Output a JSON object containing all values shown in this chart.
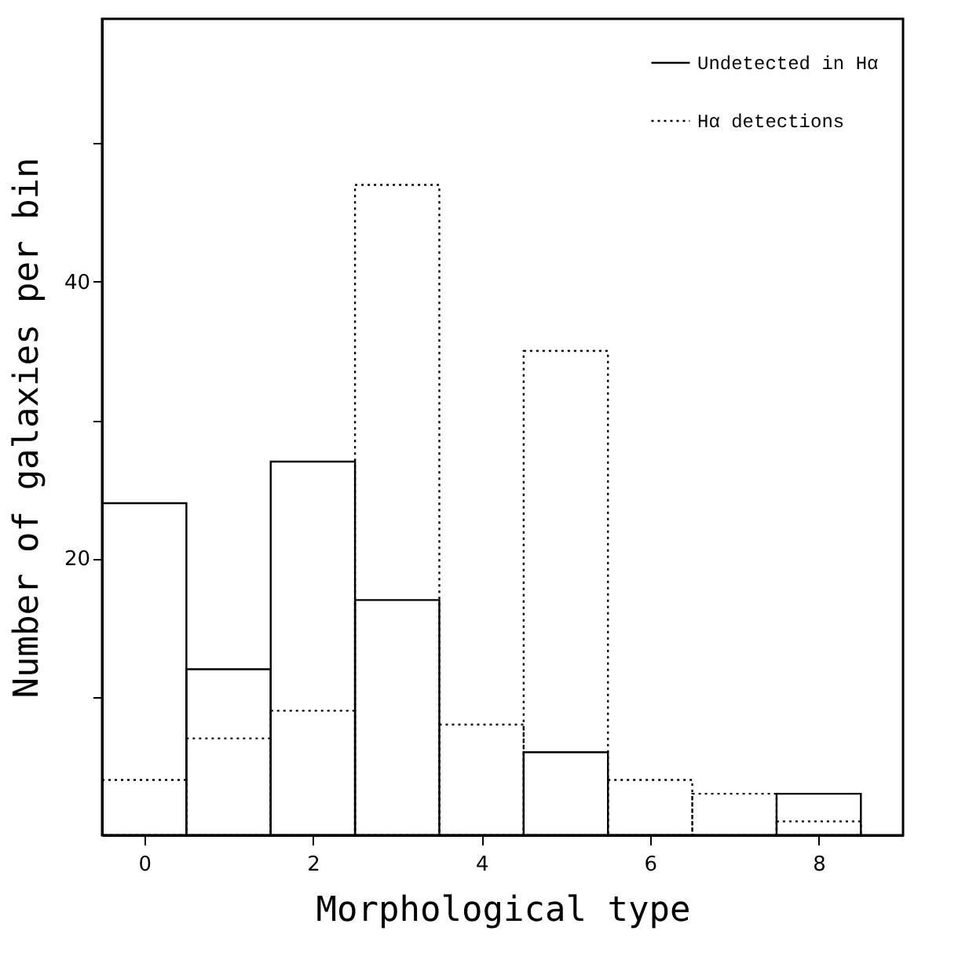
{
  "chart_data": {
    "type": "histogram",
    "xlabel": "Morphological type",
    "ylabel": "Number of galaxies per bin",
    "bins": [
      -0.5,
      0.5,
      1.5,
      2.5,
      3.5,
      4.5,
      5.5,
      6.5,
      7.5,
      8.5
    ],
    "series": [
      {
        "name": "Undetected in Hα",
        "color": "#000000",
        "line_style": "solid",
        "values": [
          24,
          12,
          27,
          17,
          0,
          6,
          0,
          0,
          3
        ]
      },
      {
        "name": "Hα detections",
        "color": "#000000",
        "line_style": "dotted",
        "values": [
          4,
          7,
          9,
          47,
          8,
          35,
          4,
          3,
          1
        ]
      }
    ],
    "xlim": [
      -0.5,
      9
    ],
    "xticks": [
      0,
      2,
      4,
      6,
      8
    ],
    "ylim": [
      0,
      59
    ],
    "yticks": [
      {
        "value": 10,
        "label": null
      },
      20,
      {
        "value": 30,
        "label": null
      },
      40,
      {
        "value": 50,
        "label": null
      }
    ],
    "legend": "top right",
    "grid": false
  }
}
